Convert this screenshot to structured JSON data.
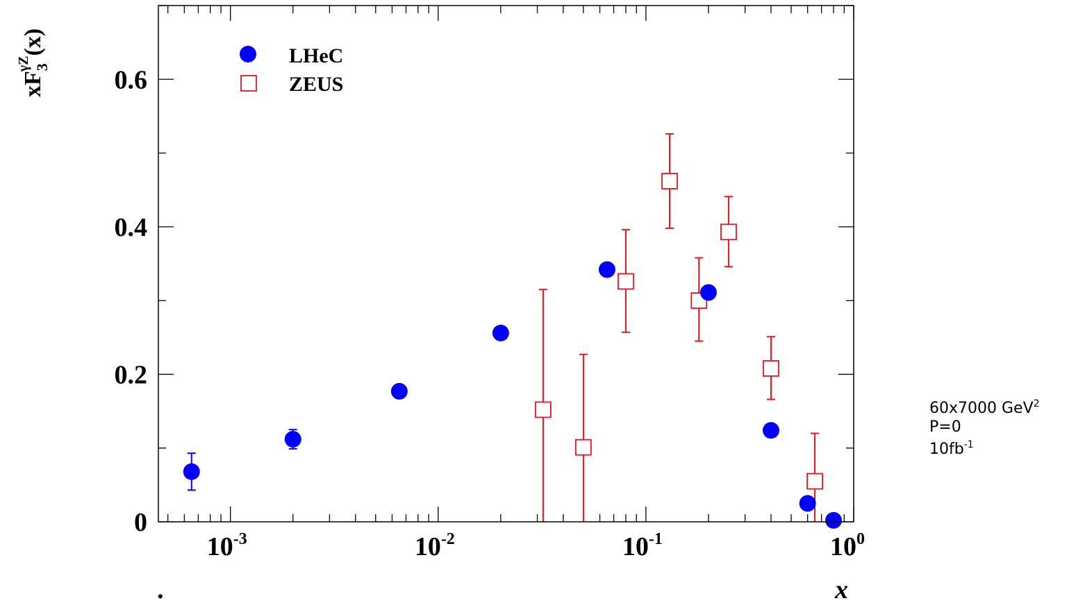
{
  "chart_data": {
    "type": "scatter",
    "xscale": "log",
    "xlim": [
      0.00045,
      1.0
    ],
    "ylim": [
      0,
      0.7
    ],
    "grid": false,
    "legend_position": "top-left",
    "xlabel": "x",
    "ylabel_main": "xF",
    "ylabel_sub": "3",
    "ylabel_sup": "γZ",
    "ylabel_tail": "(x)",
    "x_ticks": [
      {
        "value": 0.001,
        "base": "10",
        "exp": "-3"
      },
      {
        "value": 0.01,
        "base": "10",
        "exp": "-2"
      },
      {
        "value": 0.1,
        "base": "10",
        "exp": "-1"
      },
      {
        "value": 1.0,
        "base": "10",
        "exp": "0"
      }
    ],
    "y_ticks": [
      {
        "value": 0,
        "label": "0"
      },
      {
        "value": 0.2,
        "label": "0.2"
      },
      {
        "value": 0.4,
        "label": "0.4"
      },
      {
        "value": 0.6,
        "label": "0.6"
      }
    ],
    "series": [
      {
        "name": "LHeC",
        "color": "#0000ff",
        "marker": "filled-circle",
        "points": [
          {
            "x": 0.00065,
            "y": 0.068,
            "err": 0.025
          },
          {
            "x": 0.002,
            "y": 0.112,
            "err": 0.013
          },
          {
            "x": 0.0065,
            "y": 0.177,
            "err": 0
          },
          {
            "x": 0.02,
            "y": 0.256,
            "err": 0
          },
          {
            "x": 0.065,
            "y": 0.342,
            "err": 0
          },
          {
            "x": 0.2,
            "y": 0.311,
            "err": 0
          },
          {
            "x": 0.4,
            "y": 0.124,
            "err": 0
          },
          {
            "x": 0.6,
            "y": 0.025,
            "err": 0
          },
          {
            "x": 0.8,
            "y": 0.002,
            "err": 0
          }
        ]
      },
      {
        "name": "ZEUS",
        "color": "#e8141b",
        "marker": "open-square",
        "points": [
          {
            "x": 0.032,
            "y": 0.152,
            "err_up": 0.163,
            "err_down": 0.152
          },
          {
            "x": 0.05,
            "y": 0.101,
            "err_up": 0.126,
            "err_down": 0.101
          },
          {
            "x": 0.08,
            "y": 0.326,
            "err_up": 0.07,
            "err_down": 0.069
          },
          {
            "x": 0.13,
            "y": 0.462,
            "err_up": 0.064,
            "err_down": 0.064
          },
          {
            "x": 0.18,
            "y": 0.3,
            "err_up": 0.058,
            "err_down": 0.055
          },
          {
            "x": 0.25,
            "y": 0.393,
            "err_up": 0.048,
            "err_down": 0.047
          },
          {
            "x": 0.4,
            "y": 0.208,
            "err_up": 0.043,
            "err_down": 0.042
          },
          {
            "x": 0.65,
            "y": 0.055,
            "err_up": 0.065,
            "err_down": 0.055
          }
        ]
      }
    ],
    "annotations": {
      "energy_base": "60x7000 GeV",
      "energy_sup": "2",
      "polarization": "P=0",
      "lumi_base": "10fb",
      "lumi_sup": "-1",
      "dot": "."
    }
  }
}
